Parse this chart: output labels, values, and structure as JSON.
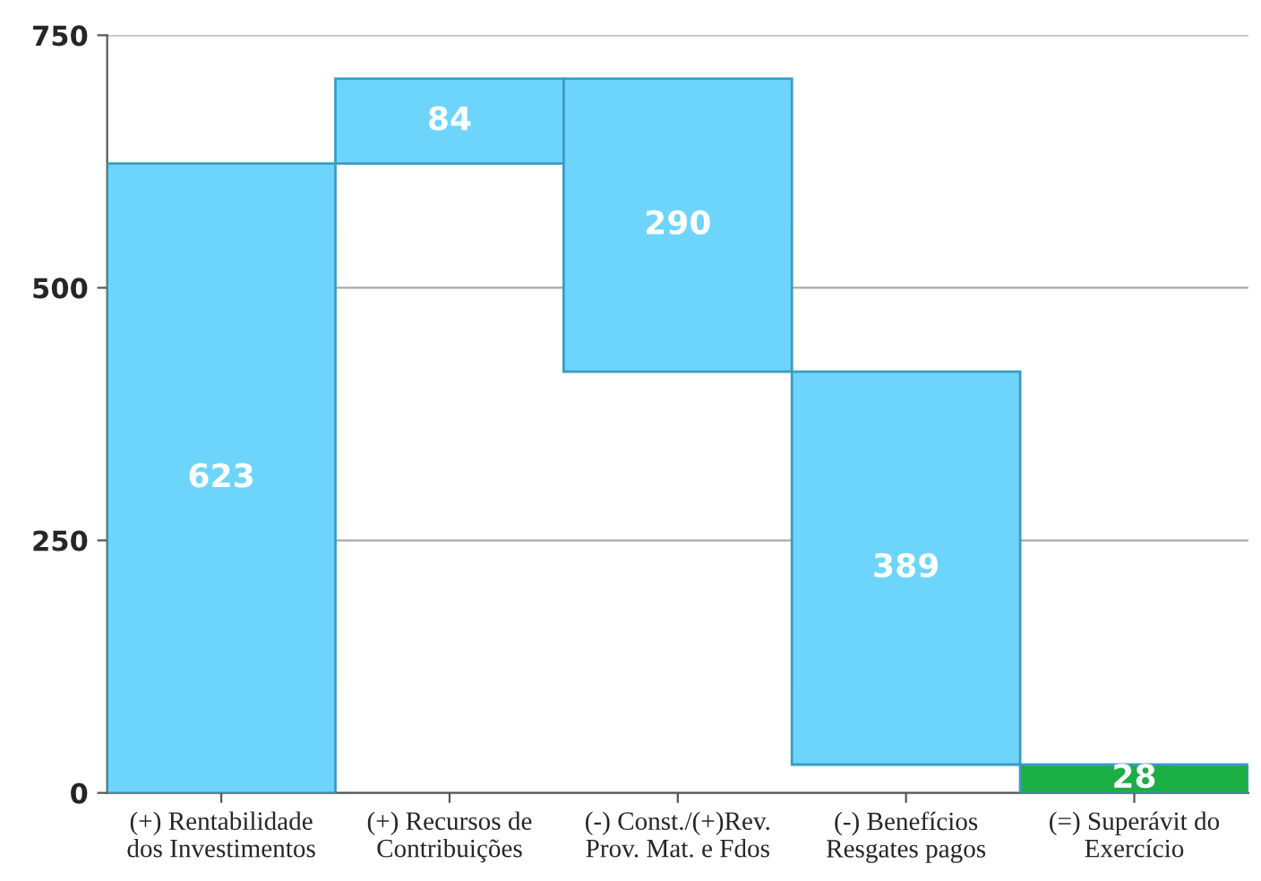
{
  "chart_data": {
    "type": "bar",
    "categories": [
      "(+) Rentabilidade\ndos Investimentos",
      "(+) Recursos de\nContribuições",
      "(-) Const./(+)Rev.\nProv. Mat. e Fdos",
      "(-) Benefícios\nResgates pagos",
      "(=) Superávit do\nExercício"
    ],
    "values": [
      623,
      84,
      290,
      389,
      28
    ],
    "base": [
      0,
      623,
      417,
      28,
      0
    ],
    "colors": [
      "#6dd5fb",
      "#6dd5fb",
      "#6dd5fb",
      "#6dd5fb",
      "#1aae45"
    ],
    "ylim": [
      0,
      750
    ],
    "yticks": [
      0,
      250,
      500,
      750
    ],
    "grid": "y",
    "data_labels": true
  }
}
